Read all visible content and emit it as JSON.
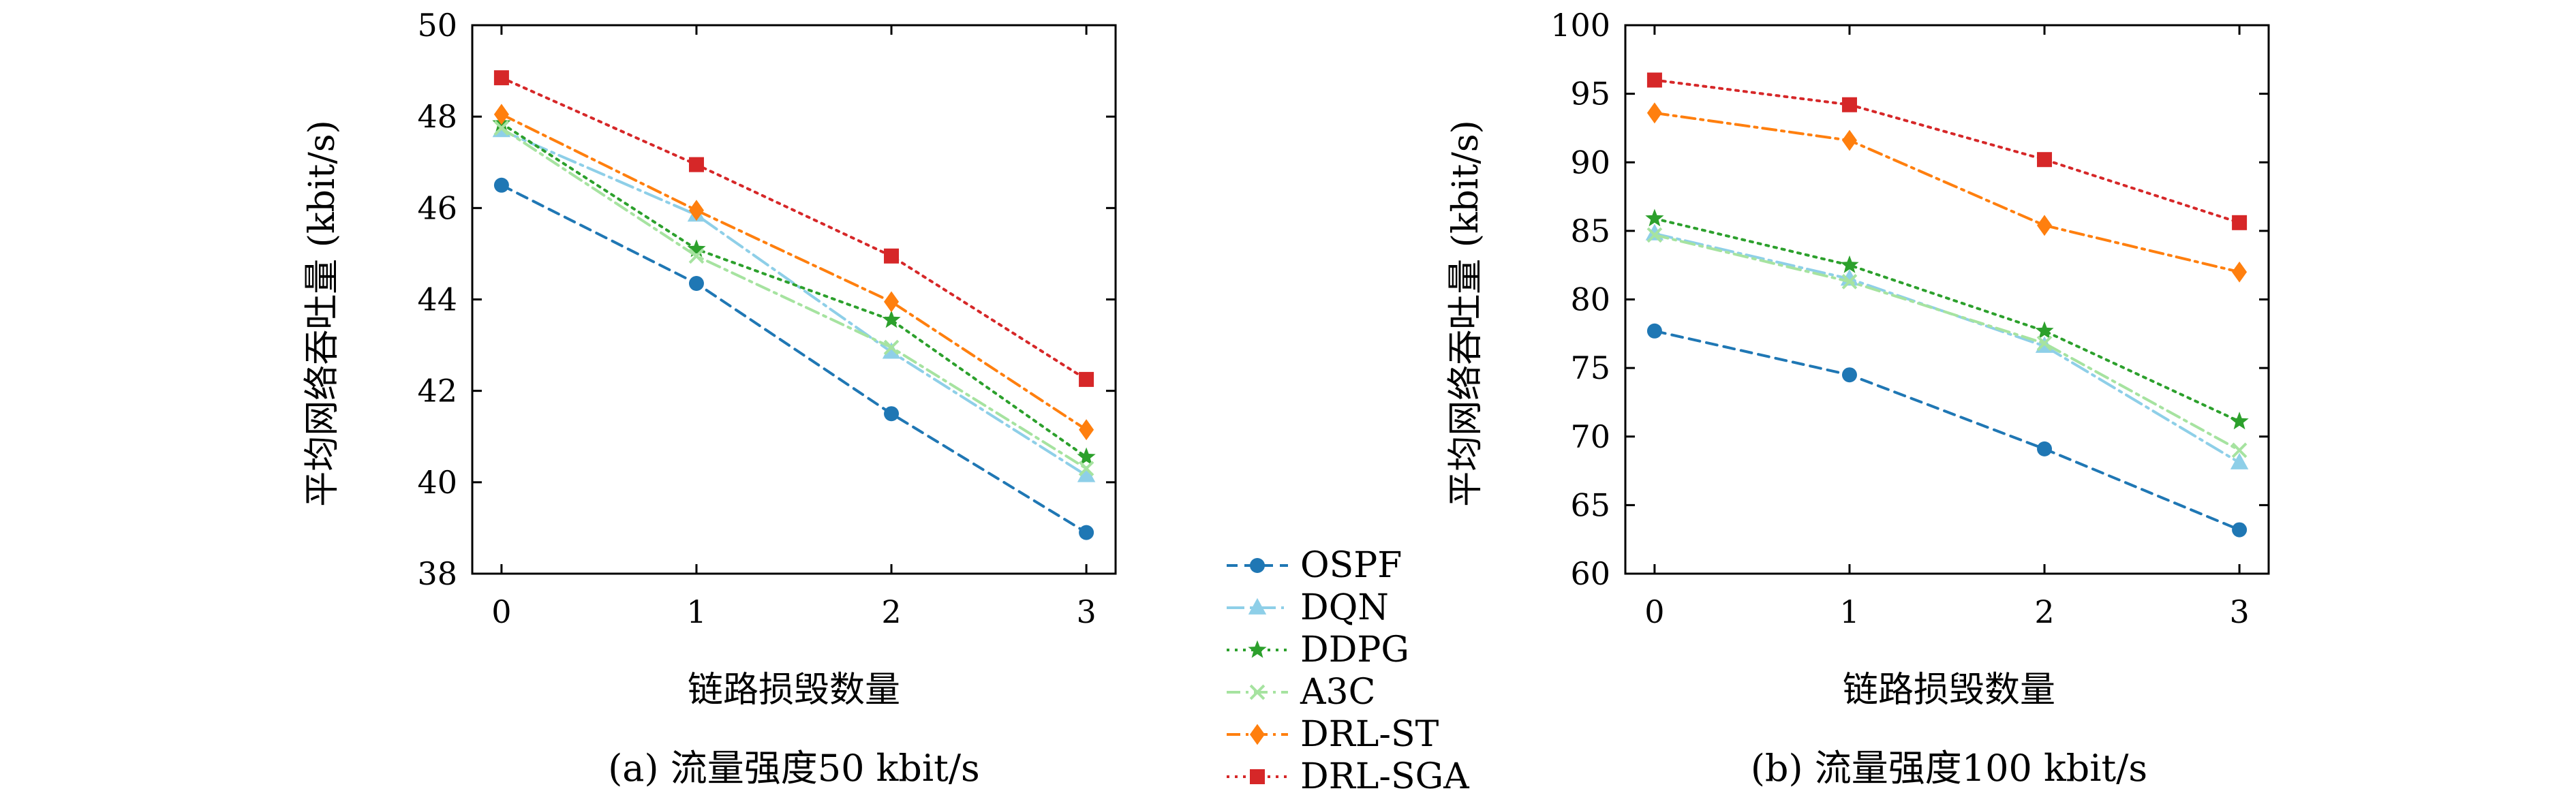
{
  "chart_data": [
    {
      "type": "line",
      "caption": "(a) 流量强度50 kbit/s",
      "xlabel": "链路损毁数量",
      "ylabel": "平均网络吞吐量 (kbit/s)",
      "x": [
        0,
        1,
        2,
        3
      ],
      "xticks": [
        "0",
        "1",
        "2",
        "3"
      ],
      "xlim": [
        -0.15,
        3.15
      ],
      "ylim": [
        38,
        50
      ],
      "yticks": [
        "38",
        "40",
        "42",
        "44",
        "46",
        "48",
        "50"
      ],
      "series": [
        {
          "name": "OSPF",
          "values": [
            46.5,
            44.35,
            41.5,
            38.9
          ]
        },
        {
          "name": "DQN",
          "values": [
            47.7,
            45.85,
            42.85,
            40.15
          ]
        },
        {
          "name": "DDPG",
          "values": [
            47.85,
            45.1,
            43.55,
            40.55
          ]
        },
        {
          "name": "A3C",
          "values": [
            47.75,
            44.95,
            42.95,
            40.3
          ]
        },
        {
          "name": "DRL-ST",
          "values": [
            48.05,
            45.95,
            43.95,
            41.15
          ]
        },
        {
          "name": "DRL-SGA",
          "values": [
            48.85,
            46.95,
            44.95,
            42.25
          ]
        }
      ]
    },
    {
      "type": "line",
      "caption": "(b) 流量强度100 kbit/s",
      "xlabel": "链路损毁数量",
      "ylabel": "平均网络吞吐量 (kbit/s)",
      "x": [
        0,
        1,
        2,
        3
      ],
      "xticks": [
        "0",
        "1",
        "2",
        "3"
      ],
      "xlim": [
        -0.15,
        3.15
      ],
      "ylim": [
        60,
        100
      ],
      "yticks": [
        "60",
        "65",
        "70",
        "75",
        "80",
        "85",
        "90",
        "95",
        "100"
      ],
      "series": [
        {
          "name": "OSPF",
          "values": [
            77.7,
            74.5,
            69.1,
            63.2
          ]
        },
        {
          "name": "DQN",
          "values": [
            84.8,
            81.5,
            76.6,
            68.1
          ]
        },
        {
          "name": "DDPG",
          "values": [
            85.9,
            82.5,
            77.7,
            71.1
          ]
        },
        {
          "name": "A3C",
          "values": [
            84.7,
            81.3,
            76.8,
            69.0
          ]
        },
        {
          "name": "DRL-ST",
          "values": [
            93.6,
            91.6,
            85.4,
            82.0
          ]
        },
        {
          "name": "DRL-SGA",
          "values": [
            96.0,
            94.2,
            90.2,
            85.6
          ]
        }
      ]
    }
  ],
  "legend": {
    "placement": "bottom-center",
    "entries": [
      "OSPF",
      "DQN",
      "DDPG",
      "A3C",
      "DRL-ST",
      "DRL-SGA"
    ]
  },
  "series_styles": [
    {
      "name": "OSPF",
      "color": "#1f77b4",
      "marker": "circle",
      "dash": "dashed"
    },
    {
      "name": "DQN",
      "color": "#8ecfe8",
      "marker": "triangle",
      "dash": "dash-dot-long"
    },
    {
      "name": "DDPG",
      "color": "#2ca02c",
      "marker": "star",
      "dash": "dotted"
    },
    {
      "name": "A3C",
      "color": "#a6e3a0",
      "marker": "x",
      "dash": "dash-dot"
    },
    {
      "name": "DRL-ST",
      "color": "#ff7f0e",
      "marker": "diamond",
      "dash": "dash-dot"
    },
    {
      "name": "DRL-SGA",
      "color": "#d62728",
      "marker": "square",
      "dash": "dotted"
    }
  ],
  "grid": false
}
